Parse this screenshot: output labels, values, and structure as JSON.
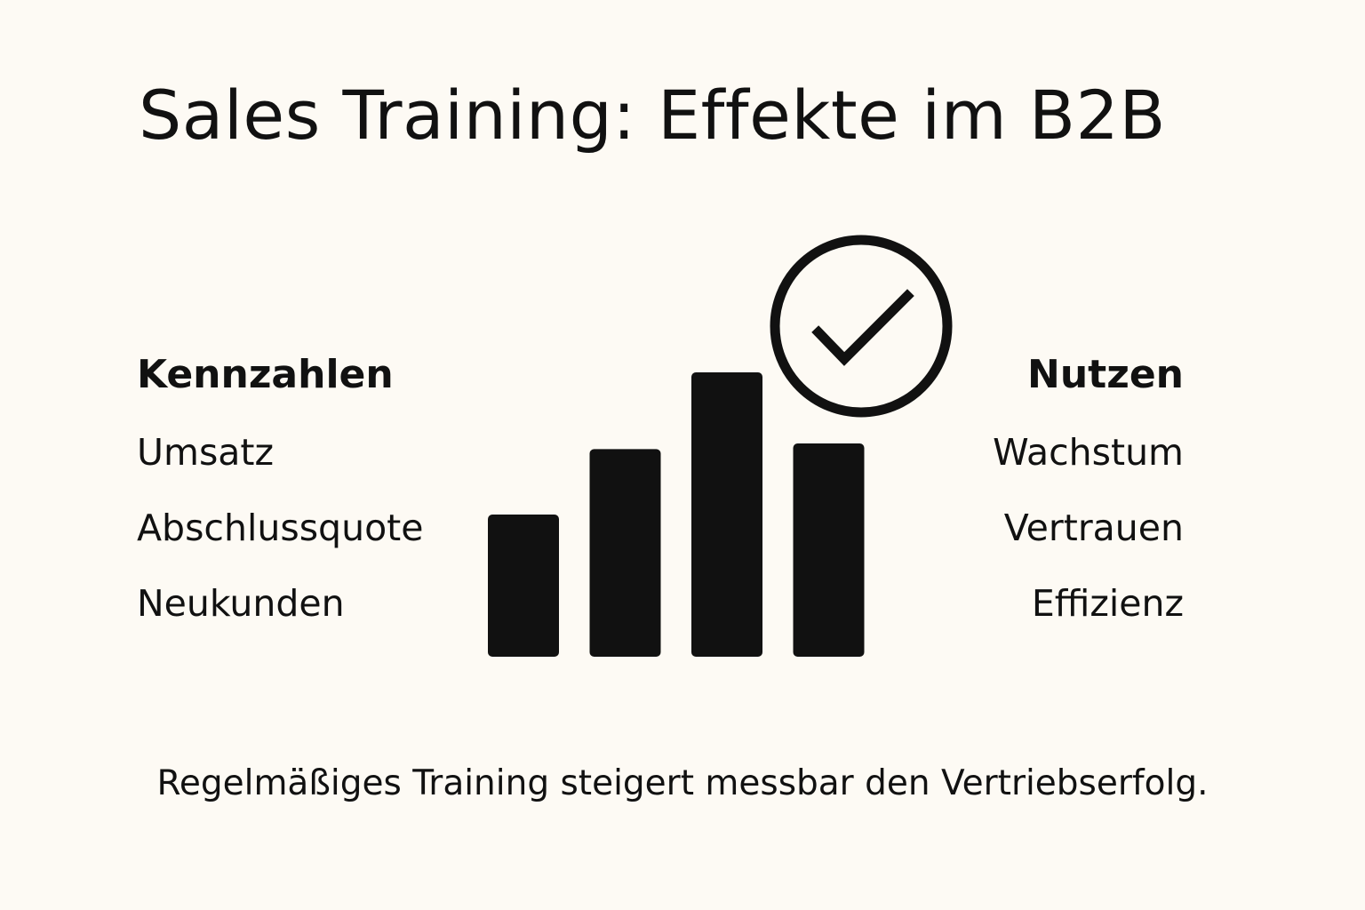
{
  "title": "Sales Training: Effekte im B2B",
  "kennzahlen": {
    "heading": "Kennzahlen",
    "items": [
      "Umsatz",
      "Abschlussquote",
      "Neukunden"
    ]
  },
  "nutzen": {
    "heading": "Nutzen",
    "items": [
      "Wachstum",
      "Vertrauen",
      "Effizienz"
    ]
  },
  "footer": "Regelmäßiges Training steigert messbar den Vertriebserfolg.",
  "graphic": {
    "bar_levels": [
      0.5,
      0.73,
      1.0,
      0.75
    ],
    "icon": "check-circle-icon",
    "color": "#111111"
  }
}
